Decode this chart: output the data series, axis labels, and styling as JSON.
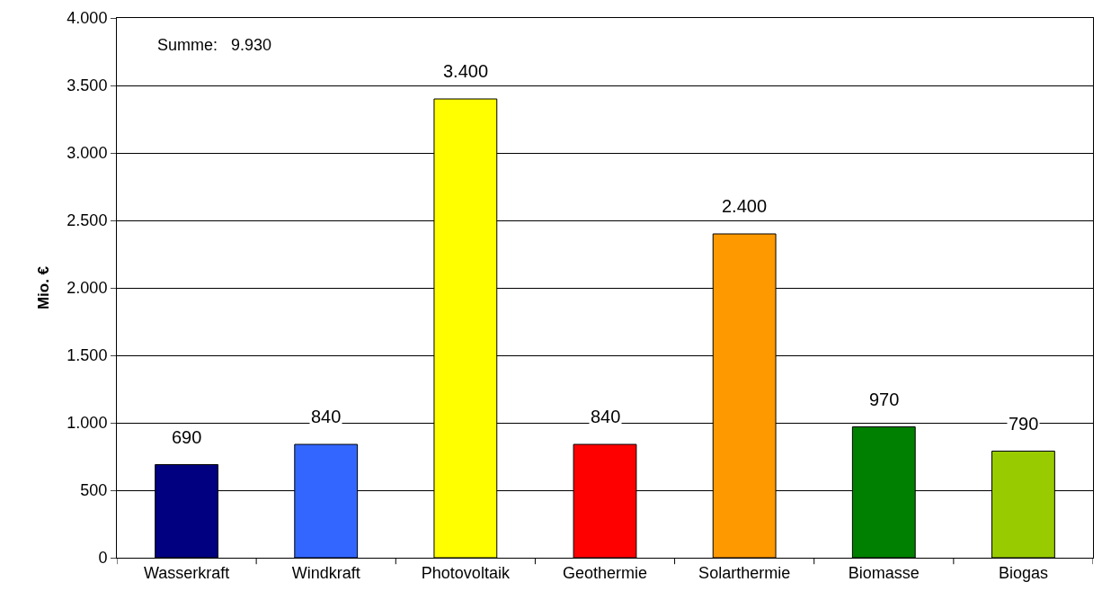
{
  "chart_data": {
    "type": "bar",
    "ylabel": "Mio. €",
    "categories": [
      "Wasserkraft",
      "Windkraft",
      "Photovoltaik",
      "Geothermie",
      "Solarthermie",
      "Biomasse",
      "Biogas"
    ],
    "values": [
      690,
      840,
      3400,
      840,
      2400,
      970,
      790
    ],
    "value_labels": [
      "690",
      "840",
      "3.400",
      "840",
      "2.400",
      "970",
      "790"
    ],
    "colors": [
      "#000080",
      "#3366ff",
      "#ffff00",
      "#ff0000",
      "#ff9900",
      "#008000",
      "#99cc00"
    ],
    "ylim": [
      0,
      4000
    ],
    "yticks": [
      {
        "value": 0,
        "label": "0"
      },
      {
        "value": 500,
        "label": "500"
      },
      {
        "value": 1000,
        "label": "1.000"
      },
      {
        "value": 1500,
        "label": "1.500"
      },
      {
        "value": 2000,
        "label": "2.000"
      },
      {
        "value": 2500,
        "label": "2.500"
      },
      {
        "value": 3000,
        "label": "3.000"
      },
      {
        "value": 3500,
        "label": "3.500"
      },
      {
        "value": 4000,
        "label": "4.000"
      }
    ],
    "grid": "y",
    "annotations": [
      "Summe:   9.930"
    ]
  }
}
